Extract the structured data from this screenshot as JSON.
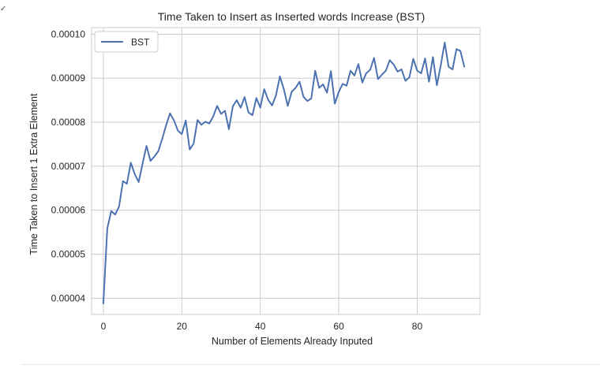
{
  "chart_data": {
    "type": "line",
    "title": "Time Taken to Insert as Inserted words Increase (BST)",
    "xlabel": "Number of Elements Already Inputed",
    "ylabel": "Time Taken to Insert 1 Extra Element",
    "xlim": [
      -3,
      96
    ],
    "ylim": [
      3.63e-05,
      0.0001015
    ],
    "xticks": [
      0,
      20,
      40,
      60,
      80
    ],
    "yticks": [
      4e-05,
      5e-05,
      6e-05,
      7e-05,
      8e-05,
      9e-05,
      0.0001
    ],
    "ytick_labels": [
      "0.00004",
      "0.00005",
      "0.00006",
      "0.00007",
      "0.00008",
      "0.00009",
      "0.00010"
    ],
    "grid": true,
    "legend_position": "top-left",
    "series": [
      {
        "name": "BST",
        "color": "#4c72b0",
        "x": [
          0,
          1,
          2,
          3,
          4,
          5,
          6,
          7,
          8,
          9,
          10,
          11,
          12,
          13,
          14,
          15,
          16,
          17,
          18,
          19,
          20,
          21,
          22,
          23,
          24,
          25,
          26,
          27,
          28,
          29,
          30,
          31,
          32,
          33,
          34,
          35,
          36,
          37,
          38,
          39,
          40,
          41,
          42,
          43,
          44,
          45,
          46,
          47,
          48,
          49,
          50,
          51,
          52,
          53,
          54,
          55,
          56,
          57,
          58,
          59,
          60,
          61,
          62,
          63,
          64,
          65,
          66,
          67,
          68,
          69,
          70,
          71,
          72,
          73,
          74,
          75,
          76,
          77,
          78,
          79,
          80,
          81,
          82,
          83,
          84,
          85,
          86,
          87,
          88,
          89,
          90,
          91,
          92
        ],
        "y": [
          3.88e-05,
          5.58e-05,
          5.98e-05,
          5.9e-05,
          6.08e-05,
          6.66e-05,
          6.6e-05,
          7.08e-05,
          6.82e-05,
          6.64e-05,
          7.06e-05,
          7.46e-05,
          7.12e-05,
          7.22e-05,
          7.34e-05,
          7.62e-05,
          7.93e-05,
          8.2e-05,
          8.04e-05,
          7.81e-05,
          7.73e-05,
          8.04e-05,
          7.38e-05,
          7.51e-05,
          8.05e-05,
          7.94e-05,
          8.01e-05,
          7.97e-05,
          8.13e-05,
          8.37e-05,
          8.19e-05,
          8.26e-05,
          7.84e-05,
          8.36e-05,
          8.5e-05,
          8.33e-05,
          8.57e-05,
          8.22e-05,
          8.16e-05,
          8.55e-05,
          8.33e-05,
          8.75e-05,
          8.51e-05,
          8.38e-05,
          8.61e-05,
          9.04e-05,
          8.75e-05,
          8.37e-05,
          8.69e-05,
          8.78e-05,
          8.92e-05,
          8.58e-05,
          8.48e-05,
          8.54e-05,
          9.17e-05,
          8.78e-05,
          8.86e-05,
          8.67e-05,
          9.16e-05,
          8.42e-05,
          8.69e-05,
          8.87e-05,
          8.83e-05,
          9.17e-05,
          9.06e-05,
          9.32e-05,
          8.9e-05,
          9.11e-05,
          9.19e-05,
          9.46e-05,
          8.98e-05,
          9.08e-05,
          9.17e-05,
          9.41e-05,
          9.31e-05,
          9.15e-05,
          9.2e-05,
          8.94e-05,
          9.02e-05,
          9.44e-05,
          9.17e-05,
          9.11e-05,
          9.45e-05,
          8.92e-05,
          9.48e-05,
          8.84e-05,
          9.29e-05,
          9.81e-05,
          9.26e-05,
          9.2e-05,
          9.66e-05,
          9.62e-05,
          9.26e-05
        ]
      }
    ]
  }
}
